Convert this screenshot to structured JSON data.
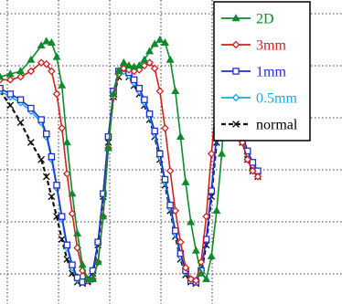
{
  "chart_data": {
    "type": "line",
    "title": "",
    "xlabel": "",
    "ylabel": "",
    "xlim": [
      0,
      100
    ],
    "ylim": [
      0,
      100
    ],
    "grid": true,
    "legend_position": "top-right",
    "series": [
      {
        "name": "2D",
        "color": "#0f8a2a",
        "marker": "triangle",
        "x": [
          0,
          4,
          8,
          12,
          16,
          18,
          20,
          22,
          24,
          26,
          28,
          30,
          32,
          34,
          36,
          38,
          40,
          42,
          44,
          46,
          48,
          50,
          52,
          54,
          56,
          58,
          60,
          62,
          64,
          66,
          68,
          70,
          72,
          74,
          76,
          78,
          80,
          82,
          84,
          86,
          88,
          90,
          92,
          94,
          96,
          98,
          100
        ],
        "y": [
          73,
          74,
          75,
          79,
          84,
          85.5,
          85,
          80,
          70,
          50,
          32,
          18,
          7,
          2,
          2,
          8,
          24,
          48,
          67,
          75,
          78,
          77,
          76.5,
          77,
          79,
          82,
          84.5,
          86,
          85,
          79,
          68,
          52,
          36,
          22,
          12,
          4,
          2,
          10,
          26,
          46,
          80,
          86,
          85,
          80,
          70,
          60,
          52
        ]
      },
      {
        "name": "3mm",
        "color": "#d42020",
        "marker": "diamond",
        "x": [
          0,
          4,
          8,
          12,
          16,
          18,
          20,
          22,
          24,
          26,
          28,
          30,
          32,
          34,
          36,
          38,
          40,
          42,
          44,
          46,
          48,
          50,
          52,
          54,
          56,
          58,
          60,
          62,
          64,
          66,
          68,
          70,
          72,
          74,
          76,
          78,
          80,
          82,
          84,
          86,
          88,
          90,
          92,
          94,
          96,
          98,
          100
        ],
        "y": [
          72,
          72,
          73,
          75,
          78,
          77.5,
          75,
          67,
          55,
          39,
          25,
          13,
          5,
          1.5,
          2,
          8,
          24,
          48,
          66,
          74,
          76,
          75.5,
          75,
          75.5,
          77,
          78,
          76,
          68,
          55,
          40,
          26,
          15,
          6,
          2,
          1.5,
          8,
          24,
          46,
          66,
          73,
          72,
          66,
          58,
          50,
          44,
          40,
          38
        ]
      },
      {
        "name": "1mm",
        "color": "#1f2fd6",
        "marker": "square",
        "x": [
          0,
          4,
          8,
          12,
          16,
          18,
          20,
          22,
          24,
          26,
          28,
          30,
          32,
          34,
          36,
          38,
          40,
          42,
          44,
          46,
          48,
          50,
          52,
          54,
          56,
          58,
          60,
          62,
          64,
          66,
          68,
          70,
          72,
          74,
          76,
          78,
          80,
          82,
          84,
          86,
          88,
          90,
          92,
          94,
          96,
          98,
          100
        ],
        "y": [
          69,
          67,
          65,
          62,
          58,
          53,
          45,
          35,
          24,
          14,
          7,
          2.5,
          1,
          1.5,
          5,
          15,
          32,
          52,
          68,
          75,
          76,
          74.5,
          72,
          69,
          65,
          60,
          54,
          46,
          37,
          28,
          19,
          11,
          5,
          1.5,
          1,
          5,
          16,
          33,
          53,
          70,
          72,
          67,
          60,
          53,
          47,
          43,
          40
        ]
      },
      {
        "name": "0.5mm",
        "color": "#19a8e0",
        "marker": "diamond",
        "x": [
          0,
          4,
          8,
          12,
          16,
          18,
          20,
          22,
          24,
          26,
          28,
          30,
          32,
          34,
          36,
          38,
          40,
          42,
          44,
          46,
          48,
          50,
          52,
          54,
          56,
          58,
          60,
          62,
          64,
          66,
          68,
          70,
          72,
          74,
          76,
          78,
          80,
          82,
          84,
          86,
          88,
          90,
          92,
          94,
          96,
          98,
          100
        ],
        "y": [
          68,
          66,
          64,
          61,
          57,
          52,
          44,
          34,
          23,
          13,
          6,
          2,
          1,
          1.5,
          5,
          15,
          32,
          52,
          67,
          74,
          75,
          73.5,
          71,
          68,
          64,
          59,
          53,
          45,
          36,
          27,
          18,
          10,
          4.5,
          1.5,
          1,
          5,
          16,
          33,
          52,
          69,
          71,
          66,
          59,
          52,
          46,
          42,
          39
        ]
      },
      {
        "name": "normal",
        "color": "#111111",
        "marker": "x",
        "dashed": true,
        "x": [
          0,
          4,
          8,
          12,
          16,
          18,
          20,
          22,
          24,
          26,
          28,
          30,
          32,
          34,
          36,
          38,
          40,
          42,
          44,
          46,
          48,
          50,
          52,
          54,
          56,
          58,
          60,
          62,
          64,
          66,
          68,
          70,
          72,
          74,
          76,
          78,
          80,
          82,
          84,
          86,
          88,
          90,
          92,
          94,
          96,
          98,
          100
        ],
        "y": [
          68,
          63,
          57,
          50,
          44,
          38,
          31,
          24,
          16,
          9,
          4,
          1,
          0.5,
          1,
          4,
          14,
          31,
          50,
          66,
          73,
          75,
          73,
          70,
          67,
          63,
          58,
          52,
          44,
          35,
          26,
          17,
          9,
          3.5,
          1,
          0.5,
          4,
          14,
          31,
          50,
          67,
          70,
          64,
          57,
          50,
          44,
          40,
          38
        ]
      }
    ]
  }
}
